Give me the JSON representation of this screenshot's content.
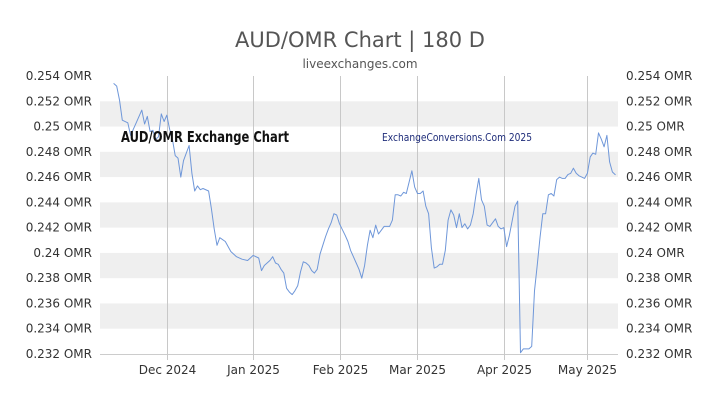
{
  "header": {
    "title": "AUD/OMR Chart | 180 D",
    "source": "liveexchanges.com"
  },
  "chart_data": {
    "type": "line",
    "title": "AUD/OMR Chart | 180 D",
    "xlabel": "",
    "ylabel": "",
    "ylim": [
      0.232,
      0.254
    ],
    "x_range": [
      "2024-11-07",
      "2025-05-12"
    ],
    "y_ticks": [
      0.254,
      0.252,
      0.25,
      0.248,
      0.246,
      0.244,
      0.242,
      0.24,
      0.238,
      0.236,
      0.234,
      0.232
    ],
    "y_tick_labels": [
      "0.254 OMR",
      "0.252 OMR",
      "0.25 OMR",
      "0.248 OMR",
      "0.246 OMR",
      "0.244 OMR",
      "0.242 OMR",
      "0.24 OMR",
      "0.238 OMR",
      "0.236 OMR",
      "0.234 OMR",
      "0.232 OMR"
    ],
    "x_ticks": [
      {
        "date": "2024-12-01",
        "label": "Dec 2024"
      },
      {
        "date": "2025-01-01",
        "label": "Jan 2025"
      },
      {
        "date": "2025-02-01",
        "label": "Feb 2025"
      },
      {
        "date": "2025-03-01",
        "label": "Mar 2025"
      },
      {
        "date": "2025-04-01",
        "label": "Apr 2025"
      },
      {
        "date": "2025-05-01",
        "label": "May 2025"
      }
    ],
    "grid": true,
    "line_color": "#6f97d9",
    "band_color": "#efefef",
    "annotations": {
      "left": "AUD/OMR Exchange Chart",
      "right": "ExchangeConversions.Com 2025"
    },
    "series": [
      {
        "values": [
          [
            "2024-11-12",
            0.2534
          ],
          [
            "2024-11-13",
            0.2532
          ],
          [
            "2024-11-14",
            0.2521
          ],
          [
            "2024-11-15",
            0.2505
          ],
          [
            "2024-11-17",
            0.2503
          ],
          [
            "2024-11-18",
            0.2493
          ],
          [
            "2024-11-19",
            0.2498
          ],
          [
            "2024-11-20",
            0.2503
          ],
          [
            "2024-11-21",
            0.2508
          ],
          [
            "2024-11-22",
            0.2513
          ],
          [
            "2024-11-23",
            0.2502
          ],
          [
            "2024-11-24",
            0.2508
          ],
          [
            "2024-11-25",
            0.2496
          ],
          [
            "2024-11-26",
            0.2497
          ],
          [
            "2024-11-27",
            0.249
          ],
          [
            "2024-11-28",
            0.2492
          ],
          [
            "2024-11-29",
            0.251
          ],
          [
            "2024-11-30",
            0.2504
          ],
          [
            "2024-12-01",
            0.2509
          ],
          [
            "2024-12-02",
            0.2498
          ],
          [
            "2024-12-03",
            0.249
          ],
          [
            "2024-12-04",
            0.2477
          ],
          [
            "2024-12-05",
            0.2475
          ],
          [
            "2024-12-06",
            0.246
          ],
          [
            "2024-12-07",
            0.2473
          ],
          [
            "2024-12-09",
            0.2485
          ],
          [
            "2024-12-10",
            0.2463
          ],
          [
            "2024-12-11",
            0.2449
          ],
          [
            "2024-12-12",
            0.2453
          ],
          [
            "2024-12-13",
            0.245
          ],
          [
            "2024-12-14",
            0.2451
          ],
          [
            "2024-12-16",
            0.2449
          ],
          [
            "2024-12-17",
            0.2435
          ],
          [
            "2024-12-18",
            0.2419
          ],
          [
            "2024-12-19",
            0.2406
          ],
          [
            "2024-12-20",
            0.2412
          ],
          [
            "2024-12-22",
            0.2409
          ],
          [
            "2024-12-24",
            0.2401
          ],
          [
            "2024-12-26",
            0.2397
          ],
          [
            "2024-12-28",
            0.2395
          ],
          [
            "2024-12-30",
            0.2394
          ],
          [
            "2025-01-01",
            0.2398
          ],
          [
            "2025-01-03",
            0.2396
          ],
          [
            "2025-01-04",
            0.2386
          ],
          [
            "2025-01-05",
            0.239
          ],
          [
            "2025-01-07",
            0.2394
          ],
          [
            "2025-01-08",
            0.2397
          ],
          [
            "2025-01-09",
            0.2392
          ],
          [
            "2025-01-10",
            0.2391
          ],
          [
            "2025-01-11",
            0.2387
          ],
          [
            "2025-01-12",
            0.2384
          ],
          [
            "2025-01-13",
            0.2372
          ],
          [
            "2025-01-14",
            0.2369
          ],
          [
            "2025-01-15",
            0.2367
          ],
          [
            "2025-01-16",
            0.237
          ],
          [
            "2025-01-17",
            0.2374
          ],
          [
            "2025-01-18",
            0.2385
          ],
          [
            "2025-01-19",
            0.2393
          ],
          [
            "2025-01-20",
            0.2392
          ],
          [
            "2025-01-21",
            0.239
          ],
          [
            "2025-01-22",
            0.2386
          ],
          [
            "2025-01-23",
            0.2384
          ],
          [
            "2025-01-24",
            0.2387
          ],
          [
            "2025-01-25",
            0.2399
          ],
          [
            "2025-01-26",
            0.2406
          ],
          [
            "2025-01-27",
            0.2413
          ],
          [
            "2025-01-28",
            0.2419
          ],
          [
            "2025-01-29",
            0.2424
          ],
          [
            "2025-01-30",
            0.2431
          ],
          [
            "2025-01-31",
            0.243
          ],
          [
            "2025-02-01",
            0.2423
          ],
          [
            "2025-02-03",
            0.2414
          ],
          [
            "2025-02-04",
            0.2409
          ],
          [
            "2025-02-05",
            0.2402
          ],
          [
            "2025-02-06",
            0.2397
          ],
          [
            "2025-02-07",
            0.2392
          ],
          [
            "2025-02-08",
            0.2387
          ],
          [
            "2025-02-09",
            0.238
          ],
          [
            "2025-02-10",
            0.239
          ],
          [
            "2025-02-11",
            0.2406
          ],
          [
            "2025-02-12",
            0.2418
          ],
          [
            "2025-02-13",
            0.2412
          ],
          [
            "2025-02-14",
            0.2422
          ],
          [
            "2025-02-15",
            0.2415
          ],
          [
            "2025-02-17",
            0.2421
          ],
          [
            "2025-02-19",
            0.2421
          ],
          [
            "2025-02-20",
            0.2426
          ],
          [
            "2025-02-21",
            0.2446
          ],
          [
            "2025-02-22",
            0.2446
          ],
          [
            "2025-02-23",
            0.2445
          ],
          [
            "2025-02-24",
            0.2448
          ],
          [
            "2025-02-25",
            0.2447
          ],
          [
            "2025-02-26",
            0.2456
          ],
          [
            "2025-02-27",
            0.2465
          ],
          [
            "2025-02-28",
            0.2452
          ],
          [
            "2025-03-01",
            0.2447
          ],
          [
            "2025-03-02",
            0.2447
          ],
          [
            "2025-03-03",
            0.2449
          ],
          [
            "2025-03-04",
            0.2437
          ],
          [
            "2025-03-05",
            0.2431
          ],
          [
            "2025-03-06",
            0.2404
          ],
          [
            "2025-03-07",
            0.2388
          ],
          [
            "2025-03-08",
            0.2389
          ],
          [
            "2025-03-09",
            0.2391
          ],
          [
            "2025-03-10",
            0.2391
          ],
          [
            "2025-03-11",
            0.2402
          ],
          [
            "2025-03-12",
            0.2426
          ],
          [
            "2025-03-13",
            0.2434
          ],
          [
            "2025-03-14",
            0.243
          ],
          [
            "2025-03-15",
            0.242
          ],
          [
            "2025-03-16",
            0.2431
          ],
          [
            "2025-03-17",
            0.242
          ],
          [
            "2025-03-18",
            0.2423
          ],
          [
            "2025-03-19",
            0.2419
          ],
          [
            "2025-03-20",
            0.2422
          ],
          [
            "2025-03-21",
            0.2431
          ],
          [
            "2025-03-22",
            0.2446
          ],
          [
            "2025-03-23",
            0.2459
          ],
          [
            "2025-03-24",
            0.2442
          ],
          [
            "2025-03-25",
            0.2437
          ],
          [
            "2025-03-26",
            0.2422
          ],
          [
            "2025-03-27",
            0.2421
          ],
          [
            "2025-03-28",
            0.2424
          ],
          [
            "2025-03-29",
            0.2427
          ],
          [
            "2025-03-30",
            0.2421
          ],
          [
            "2025-03-31",
            0.2419
          ],
          [
            "2025-04-01",
            0.242
          ],
          [
            "2025-04-02",
            0.2405
          ],
          [
            "2025-04-03",
            0.2414
          ],
          [
            "2025-04-05",
            0.2437
          ],
          [
            "2025-04-06",
            0.2441
          ],
          [
            "2025-04-07",
            0.2321
          ],
          [
            "2025-04-08",
            0.2324
          ],
          [
            "2025-04-09",
            0.2324
          ],
          [
            "2025-04-10",
            0.2324
          ],
          [
            "2025-04-11",
            0.2326
          ],
          [
            "2025-04-12",
            0.237
          ],
          [
            "2025-04-13",
            0.239
          ],
          [
            "2025-04-14",
            0.2412
          ],
          [
            "2025-04-15",
            0.2431
          ],
          [
            "2025-04-16",
            0.2431
          ],
          [
            "2025-04-17",
            0.2446
          ],
          [
            "2025-04-18",
            0.2447
          ],
          [
            "2025-04-19",
            0.2445
          ],
          [
            "2025-04-20",
            0.2458
          ],
          [
            "2025-04-21",
            0.246
          ],
          [
            "2025-04-22",
            0.2459
          ],
          [
            "2025-04-23",
            0.2459
          ],
          [
            "2025-04-24",
            0.2462
          ],
          [
            "2025-04-25",
            0.2463
          ],
          [
            "2025-04-26",
            0.2467
          ],
          [
            "2025-04-27",
            0.2463
          ],
          [
            "2025-04-28",
            0.2461
          ],
          [
            "2025-04-29",
            0.246
          ],
          [
            "2025-04-30",
            0.2459
          ],
          [
            "2025-05-01",
            0.2463
          ],
          [
            "2025-05-02",
            0.2476
          ],
          [
            "2025-05-03",
            0.2479
          ],
          [
            "2025-05-04",
            0.2478
          ],
          [
            "2025-05-05",
            0.2495
          ],
          [
            "2025-05-06",
            0.249
          ],
          [
            "2025-05-07",
            0.2484
          ],
          [
            "2025-05-08",
            0.2493
          ],
          [
            "2025-05-09",
            0.2472
          ],
          [
            "2025-05-10",
            0.2464
          ],
          [
            "2025-05-11",
            0.2462
          ]
        ]
      }
    ]
  }
}
